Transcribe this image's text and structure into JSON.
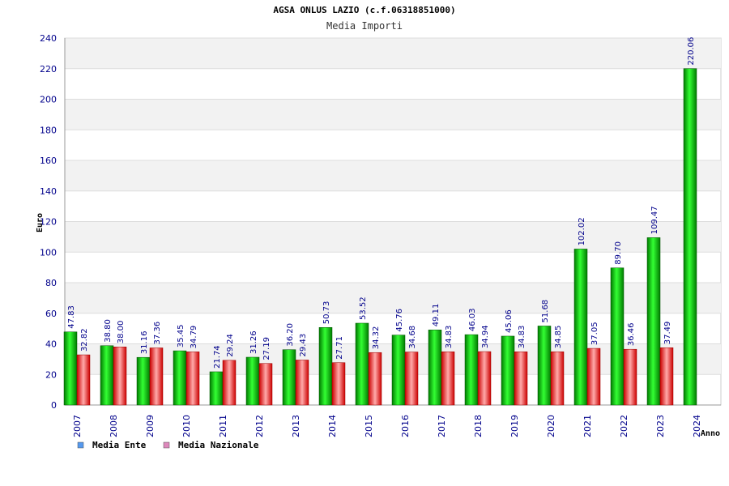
{
  "chart_data": {
    "type": "bar",
    "title": "AGSA ONLUS LAZIO (c.f.06318851000)",
    "subtitle": "Media Importi",
    "xlabel": "Anno",
    "ylabel": "Euro",
    "ylim": [
      0,
      240
    ],
    "yticks": [
      "0",
      "20",
      "40",
      "60",
      "80",
      "100",
      "120",
      "140",
      "160",
      "180",
      "200",
      "220",
      "240"
    ],
    "categories": [
      "2007",
      "2008",
      "2009",
      "2010",
      "2011",
      "2012",
      "2013",
      "2014",
      "2015",
      "2016",
      "2017",
      "2018",
      "2019",
      "2020",
      "2021",
      "2022",
      "2023",
      "2024"
    ],
    "series": [
      {
        "name": "Media Ente",
        "color": "#00aa00",
        "legend_color": "#5599ee",
        "values": [
          47.83,
          38.8,
          31.16,
          35.45,
          21.74,
          31.26,
          36.2,
          50.73,
          53.52,
          45.76,
          49.11,
          46.03,
          45.06,
          51.68,
          102.02,
          89.7,
          109.47,
          220.06
        ],
        "labels": [
          "47.83",
          "38.80",
          "31.16",
          "35.45",
          "21.74",
          "31.26",
          "36.20",
          "50.73",
          "53.52",
          "45.76",
          "49.11",
          "46.03",
          "45.06",
          "51.68",
          "102.02",
          "89.70",
          "109.47",
          "220.06"
        ]
      },
      {
        "name": "Media Nazionale",
        "color": "#dd1111",
        "legend_color": "#dd88bb",
        "values": [
          32.82,
          38.0,
          37.36,
          34.79,
          29.24,
          27.19,
          29.43,
          27.71,
          34.32,
          34.68,
          34.83,
          34.94,
          34.83,
          34.85,
          37.05,
          36.46,
          37.49,
          null
        ],
        "labels": [
          "32.82",
          "38.00",
          "37.36",
          "34.79",
          "29.24",
          "27.19",
          "29.43",
          "27.71",
          "34.32",
          "34.68",
          "34.83",
          "34.94",
          "34.83",
          "34.85",
          "37.05",
          "36.46",
          "37.49",
          ""
        ]
      }
    ],
    "grid": true,
    "legend_position": "bottom-left"
  }
}
